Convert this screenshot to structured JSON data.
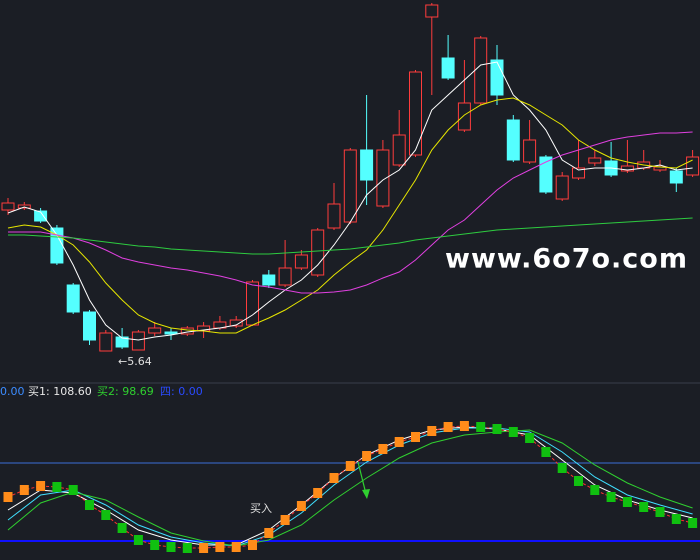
{
  "chart_data": [
    {
      "type": "candlestick",
      "open": [
        7.05,
        7.07,
        7.04,
        6.87,
        6.3,
        6.03,
        5.64,
        5.78,
        5.65,
        5.82,
        5.83,
        5.81,
        5.84,
        5.87,
        5.89,
        5.9,
        6.4,
        6.3,
        6.47,
        6.4,
        6.87,
        6.93,
        7.65,
        7.09,
        7.5,
        7.6,
        8.98,
        8.57,
        7.85,
        8.12,
        8.55,
        7.95,
        7.53,
        7.58,
        7.16,
        7.37,
        7.52,
        7.54,
        7.44,
        7.47,
        7.45,
        7.44,
        7.4
      ],
      "high": [
        7.17,
        7.13,
        7.07,
        6.9,
        6.32,
        6.05,
        5.85,
        5.87,
        5.85,
        5.93,
        5.87,
        5.89,
        5.93,
        5.99,
        5.99,
        6.35,
        6.45,
        6.75,
        6.65,
        6.87,
        7.32,
        7.67,
        8.2,
        7.75,
        8.05,
        8.45,
        9.12,
        8.8,
        8.55,
        8.79,
        8.7,
        8.0,
        7.95,
        7.6,
        7.43,
        7.75,
        7.65,
        7.73,
        7.75,
        7.65,
        7.55,
        7.47,
        7.65
      ],
      "low": [
        7.0,
        7.05,
        6.92,
        6.5,
        6.01,
        5.7,
        5.64,
        5.66,
        5.65,
        5.79,
        5.75,
        5.79,
        5.77,
        5.85,
        5.87,
        5.89,
        6.27,
        6.28,
        6.45,
        6.38,
        6.85,
        6.91,
        7.1,
        7.07,
        7.48,
        7.58,
        8.2,
        8.35,
        7.83,
        8.1,
        8.1,
        7.53,
        7.51,
        7.21,
        7.14,
        7.35,
        7.49,
        7.38,
        7.42,
        7.45,
        7.43,
        7.23,
        7.38
      ],
      "close": [
        7.12,
        7.1,
        6.94,
        6.52,
        6.03,
        5.75,
        5.82,
        5.68,
        5.83,
        5.87,
        5.81,
        5.87,
        5.89,
        5.93,
        5.95,
        6.33,
        6.3,
        6.47,
        6.6,
        6.85,
        7.11,
        7.65,
        7.35,
        7.65,
        7.8,
        8.43,
        9.1,
        8.37,
        8.12,
        8.77,
        8.2,
        7.55,
        7.75,
        7.23,
        7.39,
        7.47,
        7.57,
        7.4,
        7.49,
        7.53,
        7.48,
        7.32,
        7.58
      ],
      "up_color": "#ff3c3c",
      "down_color": "#54ffff",
      "ylim": [
        5.35,
        9.15
      ],
      "series": [
        {
          "color": "#ffffff",
          "values": [
            7.02,
            7.08,
            7.03,
            6.8,
            6.5,
            6.15,
            5.9,
            5.77,
            5.75,
            5.78,
            5.8,
            5.83,
            5.85,
            5.87,
            5.9,
            6.0,
            6.13,
            6.25,
            6.35,
            6.5,
            6.7,
            6.93,
            7.2,
            7.35,
            7.45,
            7.65,
            8.05,
            8.2,
            8.35,
            8.5,
            8.53,
            8.2,
            8.05,
            7.85,
            7.55,
            7.45,
            7.47,
            7.47,
            7.45,
            7.47,
            7.5,
            7.45,
            7.47
          ]
        },
        {
          "color": "#e6e600",
          "values": [
            6.87,
            6.9,
            6.88,
            6.8,
            6.7,
            6.53,
            6.32,
            6.15,
            6.0,
            5.92,
            5.87,
            5.85,
            5.84,
            5.82,
            5.82,
            5.9,
            5.97,
            6.05,
            6.15,
            6.25,
            6.4,
            6.53,
            6.65,
            6.85,
            7.1,
            7.35,
            7.65,
            7.85,
            8.0,
            8.1,
            8.15,
            8.17,
            8.1,
            8.0,
            7.9,
            7.75,
            7.65,
            7.57,
            7.53,
            7.5,
            7.48,
            7.47,
            7.55
          ]
        },
        {
          "color": "#e040e0",
          "values": [
            6.83,
            6.83,
            6.83,
            6.8,
            6.77,
            6.72,
            6.65,
            6.57,
            6.53,
            6.5,
            6.47,
            6.45,
            6.42,
            6.39,
            6.35,
            6.3,
            6.28,
            6.25,
            6.22,
            6.22,
            6.23,
            6.25,
            6.3,
            6.37,
            6.43,
            6.55,
            6.7,
            6.85,
            6.95,
            7.1,
            7.25,
            7.37,
            7.45,
            7.53,
            7.6,
            7.65,
            7.7,
            7.75,
            7.78,
            7.8,
            7.82,
            7.82,
            7.83
          ]
        },
        {
          "color": "#2ecc40",
          "values": [
            6.8,
            6.8,
            6.79,
            6.78,
            6.77,
            6.75,
            6.73,
            6.71,
            6.69,
            6.68,
            6.66,
            6.65,
            6.64,
            6.63,
            6.62,
            6.61,
            6.61,
            6.62,
            6.63,
            6.64,
            6.65,
            6.66,
            6.68,
            6.7,
            6.72,
            6.75,
            6.77,
            6.79,
            6.81,
            6.83,
            6.85,
            6.86,
            6.87,
            6.88,
            6.89,
            6.9,
            6.91,
            6.92,
            6.93,
            6.94,
            6.95,
            6.96,
            6.97
          ]
        }
      ],
      "annotations": [
        {
          "text": "←5.64"
        }
      ],
      "watermark": "www.6o7o.com"
    },
    {
      "type": "indicator",
      "readouts": [
        "0.00",
        "买1: 108.60",
        "买2: 98.69",
        "四: 0.00"
      ],
      "ylim": [
        -19,
        141
      ],
      "levels": [
        78,
        0
      ],
      "signal": {
        "up_color": "#ff8c1a",
        "down_color": "#10c010",
        "line_color": "#ff3030",
        "values": [
          44,
          51,
          55,
          54,
          51,
          36,
          26,
          13,
          1,
          -4,
          -6,
          -7,
          -7,
          -6,
          -6,
          -4,
          8,
          21,
          35,
          48,
          63,
          75,
          85,
          92,
          99,
          104,
          110,
          114,
          115,
          114,
          112,
          109,
          103,
          89,
          73,
          60,
          51,
          44,
          39,
          34,
          29,
          22,
          18
        ]
      },
      "x": [
        0,
        2,
        4,
        6,
        8,
        10,
        12,
        14,
        16,
        18,
        20,
        22,
        24,
        26,
        28,
        30,
        32,
        34,
        36,
        38,
        40,
        42
      ],
      "series": [
        {
          "color": "#ffffff",
          "values": [
            31,
            51,
            48,
            31,
            11,
            1,
            -4,
            -4,
            11,
            36,
            63,
            86,
            101,
            111,
            114,
            112,
            106,
            81,
            56,
            41,
            31,
            23
          ]
        },
        {
          "color": "#40e0ff",
          "values": [
            21,
            46,
            51,
            36,
            16,
            4,
            -2,
            -5,
            6,
            28,
            56,
            79,
            96,
            108,
            113,
            113,
            109,
            89,
            64,
            46,
            36,
            27
          ]
        },
        {
          "color": "#30d030",
          "values": [
            11,
            38,
            49,
            41,
            24,
            8,
            0,
            -5,
            1,
            16,
            41,
            63,
            83,
            98,
            106,
            109,
            111,
            98,
            76,
            58,
            44,
            33
          ]
        }
      ],
      "annotations": [
        {
          "text": "买入"
        }
      ]
    }
  ]
}
